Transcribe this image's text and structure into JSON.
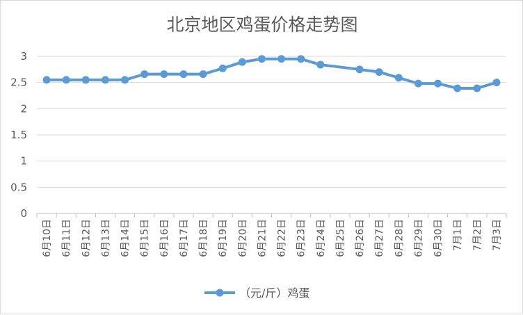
{
  "chart_data": {
    "type": "line",
    "title": "北京地区鸡蛋价格走势图",
    "xlabel": "",
    "ylabel": "",
    "ylim": [
      0,
      3
    ],
    "yticks": [
      "0",
      "0.5",
      "1",
      "1.5",
      "2",
      "2.5",
      "3"
    ],
    "grid": true,
    "legend_position": "bottom",
    "categories": [
      "6月10日",
      "6月11日",
      "6月12日",
      "6月13日",
      "6月14日",
      "6月15日",
      "6月16日",
      "6月17日",
      "6月18日",
      "6月19日",
      "6月20日",
      "6月21日",
      "6月22日",
      "6月23日",
      "6月24日",
      "6月25日",
      "6月26日",
      "6月27日",
      "6月28日",
      "6月29日",
      "6月30日",
      "7月1日",
      "7月2日",
      "7月3日"
    ],
    "series": [
      {
        "name": "（元/斤）鸡蛋",
        "color": "#5b9bd5",
        "values": [
          2.55,
          2.55,
          2.55,
          2.55,
          2.55,
          2.66,
          2.66,
          2.66,
          2.66,
          2.77,
          2.89,
          2.95,
          2.95,
          2.95,
          2.84,
          null,
          2.75,
          2.7,
          2.59,
          2.48,
          2.48,
          2.39,
          2.39,
          2.5
        ]
      }
    ]
  }
}
